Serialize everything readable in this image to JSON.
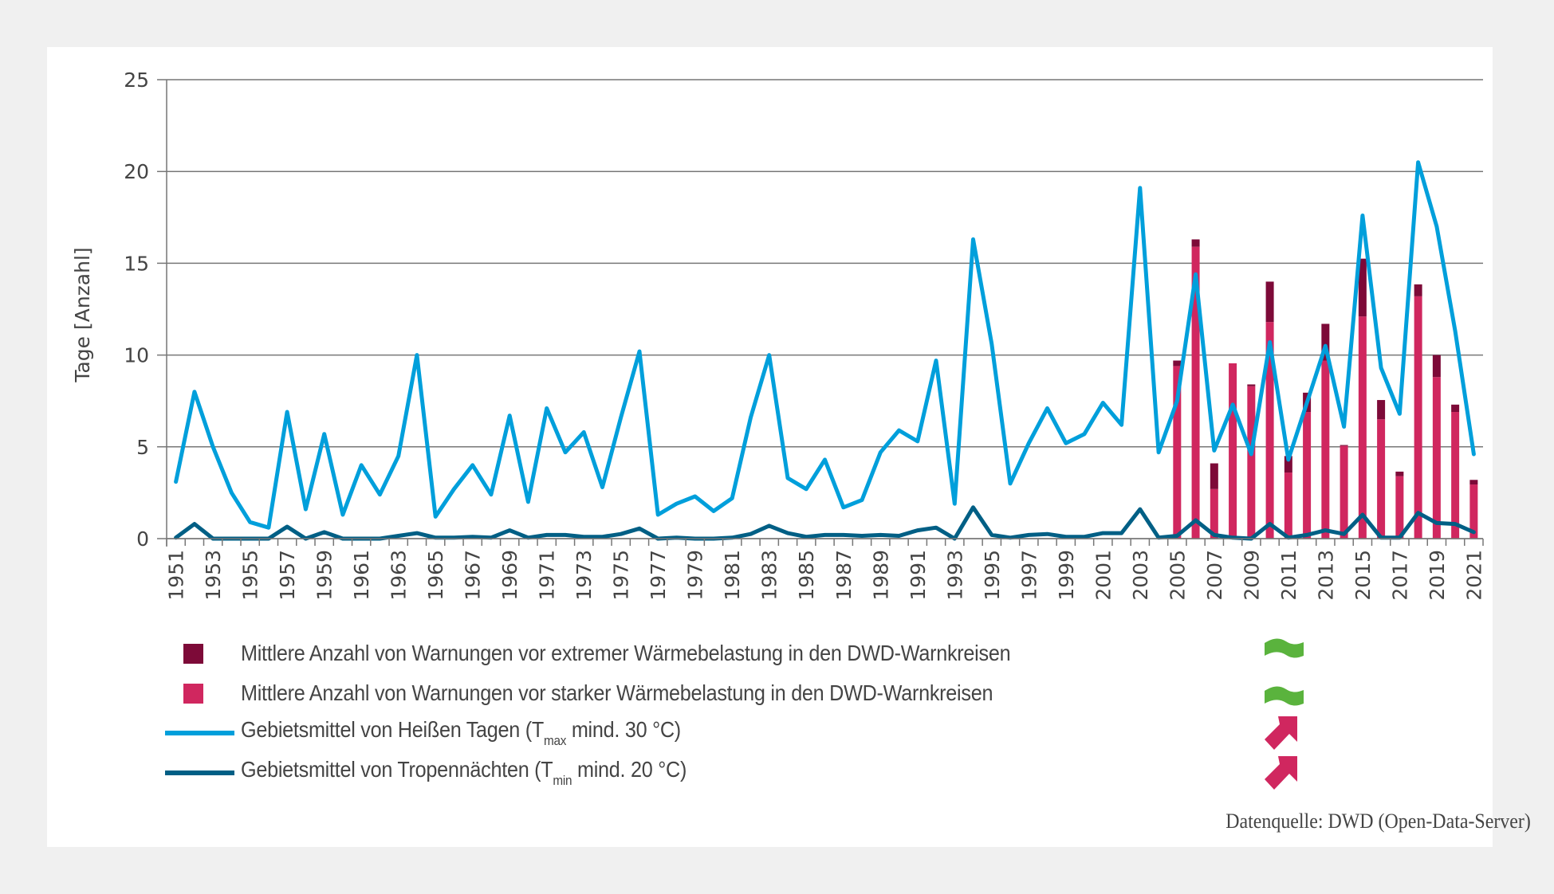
{
  "colors": {
    "hot_days": "#009fdb",
    "tropical_nights": "#005f85",
    "strong_warnings": "#d0275f",
    "extreme_warnings": "#7d0a38",
    "trend_none": "#5ab33d",
    "trend_up": "#d0275f",
    "grid": "#777777",
    "background": "#f0f0f0"
  },
  "legend": [
    {
      "key": "extreme_warnings",
      "type": "box",
      "label": "Mittlere Anzahl von Warnungen vor extremer Wärmebelastung in den DWD-Warnkreisen",
      "trend_icon": "trend-none-icon"
    },
    {
      "key": "strong_warnings",
      "type": "box",
      "label": "Mittlere Anzahl von Warnungen vor starker Wärmebelastung in den DWD-Warnkreisen",
      "trend_icon": "trend-none-icon"
    },
    {
      "key": "hot_days",
      "type": "line",
      "label_pre": "Gebietsmittel von Heißen Tagen (T",
      "label_sub": "max",
      "label_post": " mind. 30 °C)",
      "trend_icon": "trend-up-icon"
    },
    {
      "key": "tropical_nights",
      "type": "line",
      "label_pre": "Gebietsmittel von Tropennächten (T",
      "label_sub": "min",
      "label_post": " mind. 20 °C)",
      "trend_icon": "trend-up-icon"
    }
  ],
  "source": "Datenquelle: DWD (Open-Data-Server)",
  "chart_data": {
    "type": "bar+line",
    "title": "",
    "xlabel": "",
    "ylabel": "Tage [Anzahl]",
    "ylim": [
      0,
      25
    ],
    "yticks": [
      0,
      5,
      10,
      15,
      20,
      25
    ],
    "grid": true,
    "legend_position": "bottom",
    "x_start": 1951,
    "x_end": 2021,
    "x_tick_step": 2,
    "series": [
      {
        "name": "Gebietsmittel von Heißen Tagen (Tmax mind. 30 °C)",
        "key": "hot_days",
        "kind": "line",
        "x": [
          1951,
          1952,
          1953,
          1954,
          1955,
          1956,
          1957,
          1958,
          1959,
          1960,
          1961,
          1962,
          1963,
          1964,
          1965,
          1966,
          1967,
          1968,
          1969,
          1970,
          1971,
          1972,
          1973,
          1974,
          1975,
          1976,
          1977,
          1978,
          1979,
          1980,
          1981,
          1982,
          1983,
          1984,
          1985,
          1986,
          1987,
          1988,
          1989,
          1990,
          1991,
          1992,
          1993,
          1994,
          1995,
          1996,
          1997,
          1998,
          1999,
          2000,
          2001,
          2002,
          2003,
          2004,
          2005,
          2006,
          2007,
          2008,
          2009,
          2010,
          2011,
          2012,
          2013,
          2014,
          2015,
          2016,
          2017,
          2018,
          2019,
          2020,
          2021
        ],
        "values": [
          3.1,
          8.0,
          5.0,
          2.5,
          0.9,
          0.6,
          6.9,
          1.6,
          5.7,
          1.3,
          4.0,
          2.4,
          4.5,
          10.0,
          1.2,
          2.7,
          4.0,
          2.4,
          6.7,
          2.0,
          7.1,
          4.7,
          5.8,
          2.8,
          6.6,
          10.2,
          1.3,
          1.9,
          2.3,
          1.5,
          2.2,
          6.6,
          10.0,
          3.3,
          2.7,
          4.3,
          1.7,
          2.1,
          4.7,
          5.9,
          5.3,
          9.7,
          1.9,
          16.3,
          10.6,
          3.0,
          5.2,
          7.1,
          5.2,
          5.7,
          7.4,
          6.2,
          19.1,
          4.7,
          7.5,
          14.4,
          4.8,
          7.3,
          4.6,
          10.7,
          4.3,
          7.4,
          10.5,
          6.1,
          17.6,
          9.3,
          6.8,
          20.5,
          17.0,
          11.3,
          4.6
        ]
      },
      {
        "name": "Gebietsmittel von Tropennächten (Tmin mind. 20 °C)",
        "key": "tropical_nights",
        "kind": "line",
        "x": [
          1951,
          1952,
          1953,
          1954,
          1955,
          1956,
          1957,
          1958,
          1959,
          1960,
          1961,
          1962,
          1963,
          1964,
          1965,
          1966,
          1967,
          1968,
          1969,
          1970,
          1971,
          1972,
          1973,
          1974,
          1975,
          1976,
          1977,
          1978,
          1979,
          1980,
          1981,
          1982,
          1983,
          1984,
          1985,
          1986,
          1987,
          1988,
          1989,
          1990,
          1991,
          1992,
          1993,
          1994,
          1995,
          1996,
          1997,
          1998,
          1999,
          2000,
          2001,
          2002,
          2003,
          2004,
          2005,
          2006,
          2007,
          2008,
          2009,
          2010,
          2011,
          2012,
          2013,
          2014,
          2015,
          2016,
          2017,
          2018,
          2019,
          2020,
          2021
        ],
        "values": [
          0.05,
          0.8,
          0.0,
          0.0,
          0.0,
          0.0,
          0.65,
          0.0,
          0.35,
          0.0,
          0.0,
          0.0,
          0.15,
          0.3,
          0.05,
          0.05,
          0.1,
          0.05,
          0.45,
          0.05,
          0.2,
          0.2,
          0.1,
          0.1,
          0.25,
          0.55,
          0.0,
          0.05,
          0.0,
          0.0,
          0.05,
          0.25,
          0.7,
          0.3,
          0.1,
          0.2,
          0.2,
          0.15,
          0.2,
          0.15,
          0.45,
          0.6,
          0.0,
          1.7,
          0.2,
          0.05,
          0.2,
          0.25,
          0.1,
          0.1,
          0.3,
          0.3,
          1.6,
          0.05,
          0.15,
          1.0,
          0.2,
          0.05,
          0.0,
          0.8,
          0.05,
          0.2,
          0.45,
          0.25,
          1.3,
          0.05,
          0.05,
          1.4,
          0.85,
          0.8,
          0.35
        ]
      },
      {
        "name": "Mittlere Anzahl von Warnungen vor starker Wärmebelastung in den DWD-Warnkreisen",
        "key": "strong_warnings",
        "kind": "bar-stacked",
        "x": [
          2005,
          2006,
          2007,
          2008,
          2009,
          2010,
          2011,
          2012,
          2013,
          2014,
          2015,
          2016,
          2017,
          2018,
          2019,
          2020,
          2021
        ],
        "values": [
          9.4,
          15.9,
          2.7,
          9.55,
          8.3,
          11.8,
          3.6,
          6.9,
          9.7,
          5.05,
          12.1,
          6.5,
          3.4,
          13.2,
          8.8,
          6.9,
          2.95
        ]
      },
      {
        "name": "Mittlere Anzahl von Warnungen vor extremer Wärmebelastung in den DWD-Warnkreisen",
        "key": "extreme_warnings",
        "kind": "bar-stacked",
        "x": [
          2005,
          2006,
          2007,
          2008,
          2009,
          2010,
          2011,
          2012,
          2013,
          2014,
          2015,
          2016,
          2017,
          2018,
          2019,
          2020,
          2021
        ],
        "values": [
          0.3,
          0.4,
          1.4,
          0.0,
          0.1,
          2.2,
          0.9,
          1.05,
          2.0,
          0.05,
          3.15,
          1.05,
          0.25,
          0.65,
          1.2,
          0.4,
          0.25
        ]
      }
    ]
  }
}
